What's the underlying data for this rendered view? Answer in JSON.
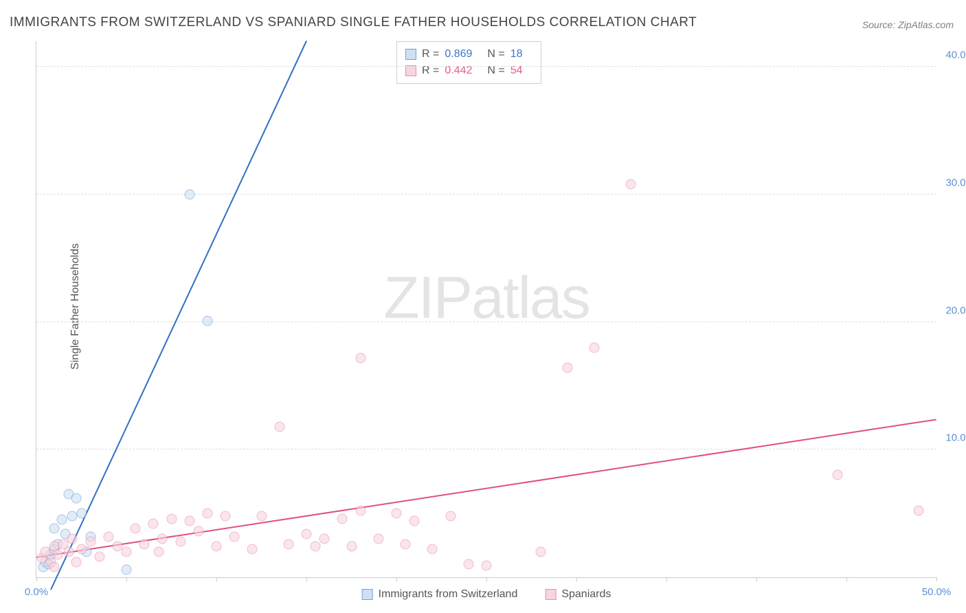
{
  "title": "IMMIGRANTS FROM SWITZERLAND VS SPANIARD SINGLE FATHER HOUSEHOLDS CORRELATION CHART",
  "source": "Source: ZipAtlas.com",
  "ylabel": "Single Father Households",
  "watermark_a": "ZIP",
  "watermark_b": "atlas",
  "chart": {
    "type": "scatter",
    "xlim": [
      0,
      50
    ],
    "ylim": [
      0,
      42
    ],
    "xticks": [
      0,
      5,
      10,
      15,
      20,
      25,
      30,
      35,
      40,
      45,
      50
    ],
    "xtick_labels": {
      "0": "0.0%",
      "50": "50.0%"
    },
    "yticks": [
      10,
      20,
      30,
      40
    ],
    "ytick_labels": {
      "10": "10.0%",
      "20": "20.0%",
      "30": "30.0%",
      "40": "40.0%"
    },
    "background_color": "#ffffff",
    "grid_color": "#dddddd",
    "axis_color": "#cccccc",
    "marker_radius": 7.5,
    "series": [
      {
        "name": "Immigrants from Switzerland",
        "fill": "#cfe0f3",
        "stroke": "#6f9fd8",
        "fill_opacity": 0.6,
        "R": "0.869",
        "N": "18",
        "trend": {
          "x1": 0.8,
          "y1": -1.0,
          "x2": 15.0,
          "y2": 42.0,
          "color": "#2f6fc2",
          "width": 2
        },
        "points": [
          [
            0.4,
            0.8
          ],
          [
            0.5,
            1.2
          ],
          [
            0.7,
            1.0
          ],
          [
            0.8,
            1.8
          ],
          [
            1.0,
            2.2
          ],
          [
            1.0,
            3.8
          ],
          [
            1.2,
            2.6
          ],
          [
            1.4,
            4.5
          ],
          [
            1.6,
            3.4
          ],
          [
            1.8,
            6.5
          ],
          [
            2.0,
            4.8
          ],
          [
            2.2,
            6.2
          ],
          [
            2.5,
            5.0
          ],
          [
            3.0,
            3.2
          ],
          [
            5.0,
            0.6
          ],
          [
            8.5,
            30.0
          ],
          [
            9.5,
            20.1
          ],
          [
            2.8,
            2.0
          ]
        ]
      },
      {
        "name": "Spaniards",
        "fill": "#f7d4de",
        "stroke": "#e88fa9",
        "fill_opacity": 0.6,
        "R": "0.442",
        "N": "54",
        "trend": {
          "x1": 0.0,
          "y1": 1.5,
          "x2": 50.0,
          "y2": 12.3,
          "color": "#e04f7c",
          "width": 2
        },
        "points": [
          [
            0.3,
            1.5
          ],
          [
            0.5,
            2.0
          ],
          [
            0.8,
            1.2
          ],
          [
            1.0,
            2.4
          ],
          [
            1.2,
            1.8
          ],
          [
            1.5,
            2.6
          ],
          [
            1.8,
            2.0
          ],
          [
            2.0,
            3.0
          ],
          [
            2.5,
            2.2
          ],
          [
            3.0,
            2.8
          ],
          [
            3.5,
            1.6
          ],
          [
            4.0,
            3.2
          ],
          [
            4.5,
            2.4
          ],
          [
            5.0,
            2.0
          ],
          [
            5.5,
            3.8
          ],
          [
            6.0,
            2.6
          ],
          [
            6.5,
            4.2
          ],
          [
            7.0,
            3.0
          ],
          [
            7.5,
            4.6
          ],
          [
            8.0,
            2.8
          ],
          [
            8.5,
            4.4
          ],
          [
            9.0,
            3.6
          ],
          [
            9.5,
            5.0
          ],
          [
            10.0,
            2.4
          ],
          [
            10.5,
            4.8
          ],
          [
            11.0,
            3.2
          ],
          [
            12.0,
            2.2
          ],
          [
            12.5,
            4.8
          ],
          [
            13.5,
            11.8
          ],
          [
            14.0,
            2.6
          ],
          [
            15.0,
            3.4
          ],
          [
            15.5,
            2.4
          ],
          [
            16.0,
            3.0
          ],
          [
            17.0,
            4.6
          ],
          [
            17.5,
            2.4
          ],
          [
            18.0,
            5.2
          ],
          [
            18.0,
            17.2
          ],
          [
            19.0,
            3.0
          ],
          [
            20.0,
            5.0
          ],
          [
            20.5,
            2.6
          ],
          [
            21.0,
            4.4
          ],
          [
            22.0,
            2.2
          ],
          [
            23.0,
            4.8
          ],
          [
            24.0,
            1.0
          ],
          [
            25.0,
            0.9
          ],
          [
            28.0,
            2.0
          ],
          [
            29.5,
            16.4
          ],
          [
            31.0,
            18.0
          ],
          [
            33.0,
            30.8
          ],
          [
            44.5,
            8.0
          ],
          [
            49.0,
            5.2
          ],
          [
            1.0,
            0.8
          ],
          [
            2.2,
            1.2
          ],
          [
            6.8,
            2.0
          ]
        ]
      }
    ],
    "legend": {
      "items": [
        {
          "label": "Immigrants from Switzerland",
          "fill": "#cfe0f3",
          "stroke": "#6f9fd8"
        },
        {
          "label": "Spaniards",
          "fill": "#f7d4de",
          "stroke": "#e88fa9"
        }
      ]
    }
  }
}
